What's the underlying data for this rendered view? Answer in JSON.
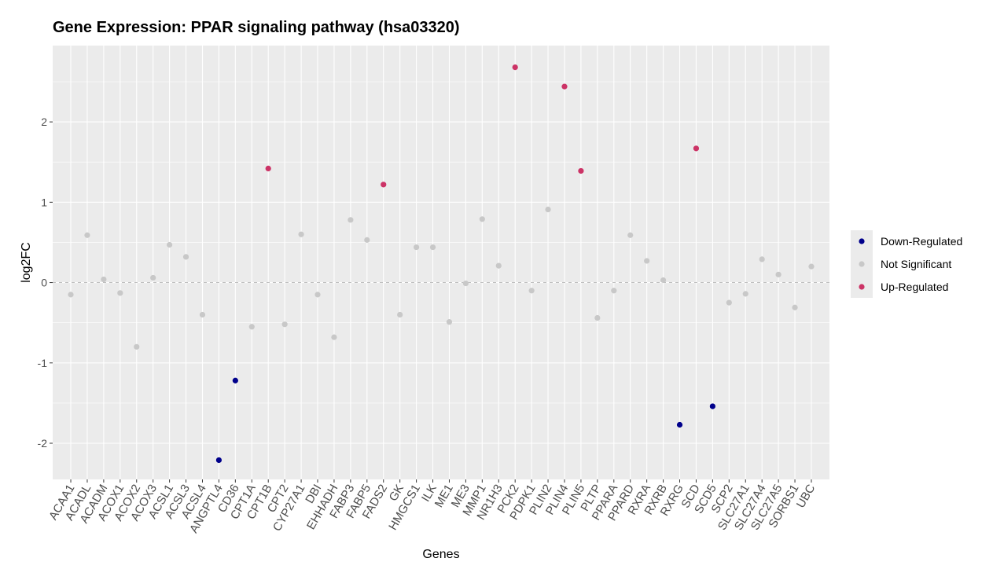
{
  "chart_data": {
    "type": "scatter",
    "title": "Gene Expression: PPAR signaling pathway (hsa03320)",
    "xlabel": "Genes",
    "ylabel": "log2FC",
    "ylim": [
      -2.45,
      2.95
    ],
    "yticks": [
      -2,
      -1,
      0,
      1,
      2
    ],
    "grid": true,
    "reference_line": 0,
    "legend_position": "right",
    "categories": [
      "ACAA1",
      "ACADL",
      "ACADM",
      "ACOX1",
      "ACOX2",
      "ACOX3",
      "ACSL1",
      "ACSL3",
      "ACSL4",
      "ANGPTL4",
      "CD36",
      "CPT1A",
      "CPT1B",
      "CPT2",
      "CYP27A1",
      "DBI",
      "EHHADH",
      "FABP3",
      "FABP5",
      "FADS2",
      "GK",
      "HMGCS1",
      "ILK",
      "ME1",
      "ME3",
      "MMP1",
      "NR1H3",
      "PCK2",
      "PDPK1",
      "PLIN2",
      "PLIN4",
      "PLIN5",
      "PLTP",
      "PPARA",
      "PPARD",
      "RXRA",
      "RXRB",
      "RXRG",
      "SCD",
      "SCD5",
      "SCP2",
      "SLC27A1",
      "SLC27A4",
      "SLC27A5",
      "SORBS1",
      "UBC"
    ],
    "values": [
      -0.15,
      0.59,
      0.04,
      -0.13,
      -0.8,
      0.06,
      0.47,
      0.32,
      -0.4,
      -2.21,
      -1.22,
      -0.55,
      1.42,
      -0.52,
      0.6,
      -0.15,
      -0.68,
      0.78,
      0.53,
      1.22,
      -0.4,
      0.44,
      0.44,
      -0.49,
      -0.01,
      0.79,
      0.21,
      2.68,
      -0.1,
      0.91,
      2.44,
      1.39,
      -0.44,
      -0.1,
      0.59,
      0.27,
      0.03,
      -1.77,
      1.67,
      -1.54,
      -0.25,
      -0.14,
      0.29,
      0.1,
      -0.31,
      0.2
    ],
    "groups": [
      "Not Significant",
      "Not Significant",
      "Not Significant",
      "Not Significant",
      "Not Significant",
      "Not Significant",
      "Not Significant",
      "Not Significant",
      "Not Significant",
      "Down-Regulated",
      "Down-Regulated",
      "Not Significant",
      "Up-Regulated",
      "Not Significant",
      "Not Significant",
      "Not Significant",
      "Not Significant",
      "Not Significant",
      "Not Significant",
      "Up-Regulated",
      "Not Significant",
      "Not Significant",
      "Not Significant",
      "Not Significant",
      "Not Significant",
      "Not Significant",
      "Not Significant",
      "Up-Regulated",
      "Not Significant",
      "Not Significant",
      "Up-Regulated",
      "Up-Regulated",
      "Not Significant",
      "Not Significant",
      "Not Significant",
      "Not Significant",
      "Not Significant",
      "Down-Regulated",
      "Up-Regulated",
      "Down-Regulated",
      "Not Significant",
      "Not Significant",
      "Not Significant",
      "Not Significant",
      "Not Significant",
      "Not Significant"
    ],
    "legend": [
      {
        "name": "Down-Regulated",
        "color": "#00008B"
      },
      {
        "name": "Not Significant",
        "color": "#C8C8C8"
      },
      {
        "name": "Up-Regulated",
        "color": "#CC3366"
      }
    ],
    "colors": {
      "panel_background": "#EBEBEB",
      "grid": "#FFFFFF",
      "reference_line": "#BEBEBE"
    }
  }
}
